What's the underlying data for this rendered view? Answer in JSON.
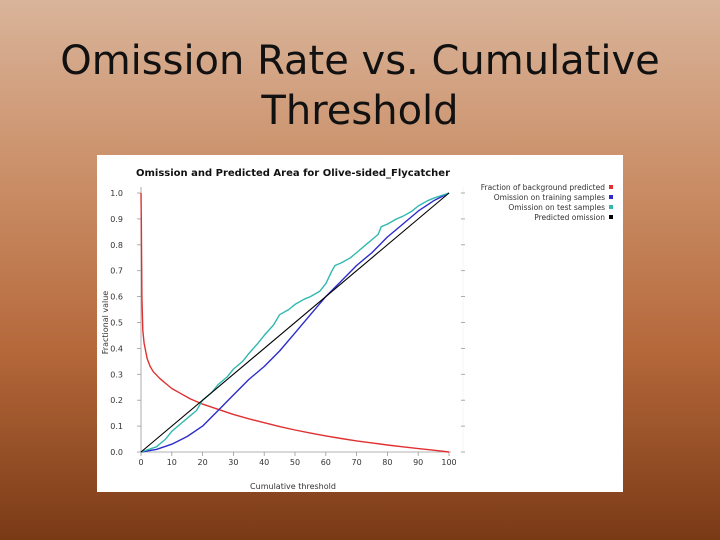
{
  "slide": {
    "title": "Omission Rate vs. Cumulative Threshold"
  },
  "chart_data": {
    "type": "line",
    "title": "Omission and Predicted Area for Olive-sided_Flycatcher",
    "xlabel": "Cumulative threshold",
    "ylabel": "Fractional value",
    "xlim": [
      0,
      100
    ],
    "ylim": [
      0,
      1
    ],
    "x_ticks": [
      "0",
      "10",
      "20",
      "30",
      "40",
      "50",
      "60",
      "70",
      "80",
      "90",
      "100"
    ],
    "y_ticks": [
      "0.0",
      "0.1",
      "0.2",
      "0.3",
      "0.4",
      "0.5",
      "0.6",
      "0.7",
      "0.8",
      "0.9",
      "1.0"
    ],
    "grid": false,
    "legend_position": "top-right",
    "series": [
      {
        "name": "Fraction of background predicted",
        "color": "#e03030",
        "x": [
          0,
          0.1,
          0.3,
          0.6,
          1,
          2,
          3,
          4,
          6,
          8,
          10,
          13,
          16,
          20,
          25,
          30,
          35,
          40,
          45,
          50,
          55,
          60,
          65,
          70,
          75,
          80,
          85,
          90,
          95,
          100
        ],
        "y": [
          1.0,
          0.9,
          0.6,
          0.47,
          0.42,
          0.36,
          0.33,
          0.31,
          0.285,
          0.265,
          0.245,
          0.225,
          0.205,
          0.185,
          0.165,
          0.145,
          0.128,
          0.113,
          0.098,
          0.085,
          0.073,
          0.062,
          0.052,
          0.043,
          0.035,
          0.027,
          0.02,
          0.013,
          0.007,
          0.0
        ]
      },
      {
        "name": "Omission on training samples",
        "color": "#2c2ccc",
        "x": [
          0,
          5,
          10,
          15,
          20,
          25,
          30,
          35,
          40,
          45,
          50,
          55,
          60,
          65,
          70,
          75,
          80,
          85,
          90,
          95,
          100
        ],
        "y": [
          0.0,
          0.01,
          0.03,
          0.06,
          0.1,
          0.16,
          0.22,
          0.28,
          0.33,
          0.39,
          0.46,
          0.53,
          0.6,
          0.66,
          0.72,
          0.77,
          0.83,
          0.88,
          0.93,
          0.97,
          1.0
        ]
      },
      {
        "name": "Omission on test samples",
        "color": "#30b8b0",
        "x": [
          0,
          5,
          8,
          10,
          13,
          15,
          18,
          20,
          23,
          25,
          28,
          30,
          33,
          35,
          38,
          40,
          43,
          45,
          48,
          50,
          53,
          55,
          58,
          60,
          62,
          63,
          65,
          68,
          70,
          73,
          75,
          77,
          78,
          80,
          83,
          85,
          88,
          90,
          93,
          95,
          100
        ],
        "y": [
          0.0,
          0.02,
          0.05,
          0.08,
          0.11,
          0.13,
          0.16,
          0.2,
          0.23,
          0.26,
          0.29,
          0.32,
          0.35,
          0.38,
          0.42,
          0.45,
          0.49,
          0.53,
          0.55,
          0.57,
          0.59,
          0.6,
          0.62,
          0.65,
          0.7,
          0.72,
          0.73,
          0.75,
          0.77,
          0.8,
          0.82,
          0.84,
          0.87,
          0.88,
          0.9,
          0.91,
          0.93,
          0.95,
          0.97,
          0.98,
          1.0
        ]
      },
      {
        "name": "Predicted omission",
        "color": "#000000",
        "x": [
          0,
          100
        ],
        "y": [
          0.0,
          1.0
        ]
      }
    ]
  }
}
